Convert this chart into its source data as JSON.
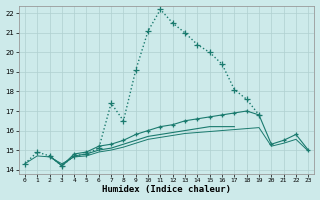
{
  "xlabel": "Humidex (Indice chaleur)",
  "bg_color": "#cdeaea",
  "grid_color": "#b0d0d0",
  "line_color": "#1a7a6e",
  "xlim": [
    -0.5,
    23.5
  ],
  "ylim": [
    13.8,
    22.4
  ],
  "xticks": [
    0,
    1,
    2,
    3,
    4,
    5,
    6,
    7,
    8,
    9,
    10,
    11,
    12,
    13,
    14,
    15,
    16,
    17,
    18,
    19,
    20,
    21,
    22,
    23
  ],
  "yticks": [
    14,
    15,
    16,
    17,
    18,
    19,
    20,
    21,
    22
  ],
  "series": [
    {
      "x": [
        0,
        1,
        2,
        3,
        4,
        5,
        6,
        7,
        8,
        9,
        10,
        11,
        12,
        13,
        14,
        15,
        16,
        17,
        18,
        19
      ],
      "y": [
        14.3,
        14.9,
        14.7,
        14.2,
        14.7,
        14.8,
        15.1,
        17.4,
        16.5,
        19.1,
        21.1,
        22.2,
        21.5,
        21.0,
        20.4,
        20.0,
        19.4,
        18.1,
        17.6,
        16.8
      ],
      "linestyle": ":",
      "marker": "+",
      "linewidth": 1.0,
      "markersize": 4
    },
    {
      "x": [
        2,
        3,
        4,
        5,
        6,
        7,
        8,
        9,
        10,
        11,
        12,
        13,
        14,
        15,
        16,
        17,
        18,
        19,
        20,
        21,
        22,
        23
      ],
      "y": [
        14.7,
        14.2,
        14.8,
        14.9,
        15.2,
        15.3,
        15.5,
        15.8,
        16.0,
        16.2,
        16.3,
        16.5,
        16.6,
        16.7,
        16.8,
        16.9,
        17.0,
        16.8,
        15.3,
        15.5,
        15.8,
        15.0
      ],
      "linestyle": "-",
      "marker": "+",
      "linewidth": 0.8,
      "markersize": 3
    },
    {
      "x": [
        2,
        3,
        4,
        5,
        6,
        7,
        8,
        9,
        10,
        11,
        12,
        13,
        14,
        15,
        16,
        17
      ],
      "y": [
        14.7,
        14.2,
        14.7,
        14.8,
        15.0,
        15.1,
        15.3,
        15.5,
        15.7,
        15.8,
        15.9,
        16.0,
        16.1,
        16.2,
        16.2,
        16.2
      ],
      "linestyle": "-",
      "marker": null,
      "linewidth": 0.8,
      "markersize": 0
    },
    {
      "x": [
        0,
        1,
        2,
        3,
        4,
        5,
        6,
        7,
        8,
        9,
        10,
        11,
        12,
        13,
        14,
        15,
        16,
        17,
        18,
        19,
        20,
        21,
        22,
        23
      ],
      "y": [
        14.3,
        14.7,
        14.65,
        14.3,
        14.65,
        14.7,
        14.9,
        15.0,
        15.15,
        15.35,
        15.55,
        15.65,
        15.75,
        15.85,
        15.9,
        15.95,
        16.0,
        16.05,
        16.1,
        16.15,
        15.2,
        15.35,
        15.55,
        14.95
      ],
      "linestyle": "-",
      "marker": null,
      "linewidth": 0.7,
      "markersize": 0
    }
  ]
}
